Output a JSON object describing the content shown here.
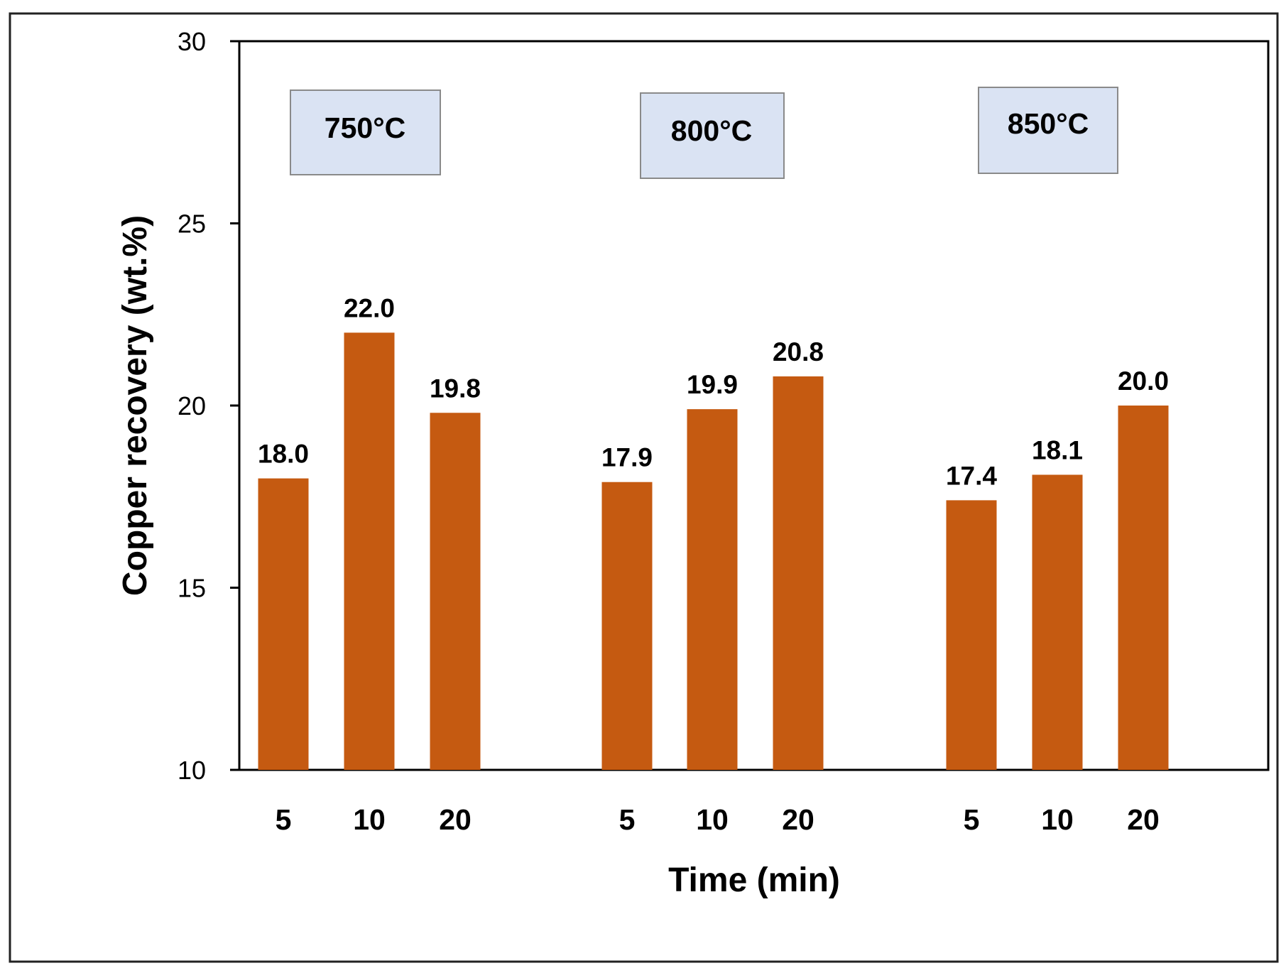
{
  "chart_data": {
    "type": "bar",
    "xlabel": "Time (min)",
    "ylabel": "Copper recovery (wt.%)",
    "ylim": [
      10,
      30
    ],
    "yticks": [
      "10",
      "15",
      "20",
      "25",
      "30"
    ],
    "ytick_values": [
      10,
      15,
      20,
      25,
      30
    ],
    "bar_color": "#c55a11",
    "label_box_color": "#dae3f3",
    "groups": [
      {
        "name": "750°C",
        "categories": [
          "5",
          "10",
          "20"
        ],
        "values": [
          18.0,
          22.0,
          19.8
        ],
        "labels": [
          "18.0",
          "22.0",
          "19.8"
        ]
      },
      {
        "name": "800°C",
        "categories": [
          "5",
          "10",
          "20"
        ],
        "values": [
          17.9,
          19.9,
          20.8
        ],
        "labels": [
          "17.9",
          "19.9",
          "20.8"
        ]
      },
      {
        "name": "850°C",
        "categories": [
          "5",
          "10",
          "20"
        ],
        "values": [
          17.4,
          18.1,
          20.0
        ],
        "labels": [
          "17.4",
          "18.1",
          "20.0"
        ]
      }
    ]
  }
}
